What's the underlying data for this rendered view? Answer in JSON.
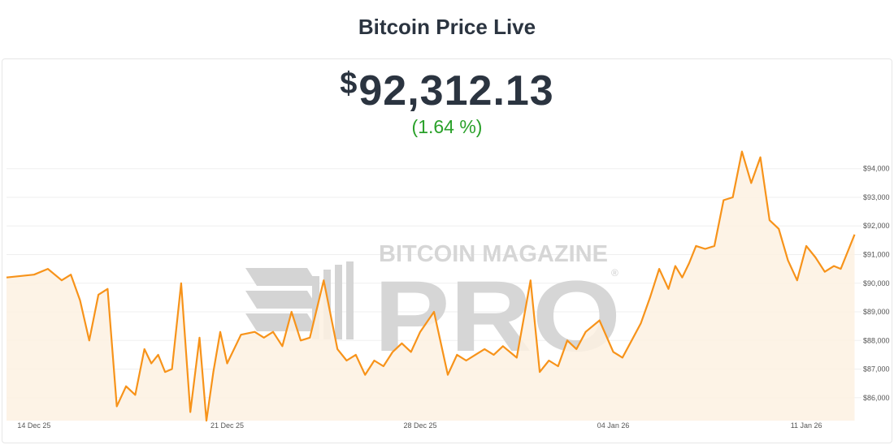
{
  "page": {
    "title": "Bitcoin Price Live"
  },
  "price": {
    "currency": "$",
    "value": "92,312.13",
    "change": "(1.64 %)"
  },
  "watermark": {
    "line1": "BITCOIN MAGAZINE",
    "line2": "PRO",
    "mark": "®"
  },
  "colors": {
    "line": "#f7931a",
    "fill": "#fdf1e2",
    "grid": "#efefef",
    "positive": "#2aa12a"
  },
  "chart_data": {
    "type": "area",
    "title": "",
    "xlabel": "",
    "ylabel": "",
    "x_ticks": [
      "14 Dec 25",
      "21 Dec 25",
      "28 Dec 25",
      "04 Jan 26",
      "11 Jan 26"
    ],
    "y_ticks": [
      "$86,000",
      "$87,000",
      "$88,000",
      "$89,000",
      "$90,000",
      "$91,000",
      "$92,000",
      "$93,000",
      "$94,000"
    ],
    "xlim": [
      "2025-12-13",
      "2026-01-13"
    ],
    "ylim": [
      85200,
      94900
    ],
    "grid": true,
    "series": [
      {
        "x": [
          "2025-12-13",
          "2025-12-14",
          "2025-12-14",
          "2025-12-15",
          "2025-12-15",
          "2025-12-15",
          "2025-12-16",
          "2025-12-16",
          "2025-12-16",
          "2025-12-17",
          "2025-12-17",
          "2025-12-17",
          "2025-12-18",
          "2025-12-18",
          "2025-12-18",
          "2025-12-18",
          "2025-12-19",
          "2025-12-19",
          "2025-12-19",
          "2025-12-20",
          "2025-12-20",
          "2025-12-20",
          "2025-12-20",
          "2025-12-21",
          "2025-12-21",
          "2025-12-22",
          "2025-12-22",
          "2025-12-22",
          "2025-12-23",
          "2025-12-23",
          "2025-12-23",
          "2025-12-24",
          "2025-12-24",
          "2025-12-25",
          "2025-12-25",
          "2025-12-25",
          "2025-12-26",
          "2025-12-26",
          "2025-12-26",
          "2025-12-27",
          "2025-12-27",
          "2025-12-27",
          "2025-12-28",
          "2025-12-28",
          "2025-12-29",
          "2025-12-29",
          "2025-12-29",
          "2025-12-30",
          "2025-12-30",
          "2025-12-30",
          "2025-12-31",
          "2025-12-31",
          "2026-01-01",
          "2026-01-01",
          "2026-01-01",
          "2026-01-02",
          "2026-01-02",
          "2026-01-02",
          "2026-01-03",
          "2026-01-03",
          "2026-01-04",
          "2026-01-04",
          "2026-01-04",
          "2026-01-05",
          "2026-01-05",
          "2026-01-05",
          "2026-01-06",
          "2026-01-06",
          "2026-01-06",
          "2026-01-06",
          "2026-01-07",
          "2026-01-07",
          "2026-01-07",
          "2026-01-08",
          "2026-01-08",
          "2026-01-08",
          "2026-01-09",
          "2026-01-09",
          "2026-01-09",
          "2026-01-10",
          "2026-01-10",
          "2026-01-10",
          "2026-01-11",
          "2026-01-11",
          "2026-01-11",
          "2026-01-12",
          "2026-01-12",
          "2026-01-12",
          "2026-01-12"
        ],
        "values": [
          90200,
          90300,
          90500,
          90100,
          90300,
          89400,
          88000,
          89600,
          89800,
          85700,
          86400,
          86100,
          87700,
          87200,
          87500,
          86900,
          87000,
          90000,
          85500,
          88100,
          85200,
          86900,
          88300,
          87200,
          88200,
          88300,
          88100,
          88300,
          87800,
          89000,
          88000,
          88100,
          90100,
          87700,
          87300,
          87500,
          86800,
          87300,
          87100,
          87600,
          87900,
          87600,
          88300,
          89000,
          86800,
          87500,
          87300,
          87500,
          87700,
          87500,
          87800,
          87400,
          90100,
          86900,
          87300,
          87100,
          88000,
          87700,
          88300,
          88700,
          87600,
          87400,
          88000,
          88600,
          89500,
          90500,
          89800,
          90600,
          90200,
          90700,
          91300,
          91200,
          91300,
          92900,
          93000,
          94600,
          93500,
          94400,
          92200,
          91900,
          90800,
          90100,
          91300,
          90900,
          90400,
          90600,
          90500,
          91100,
          91700
        ]
      }
    ]
  }
}
